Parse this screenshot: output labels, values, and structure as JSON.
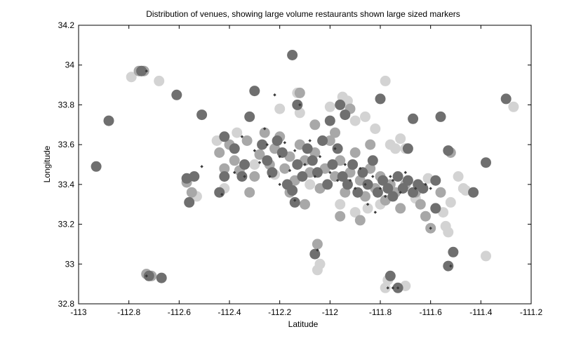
{
  "chart_data": {
    "type": "scatter",
    "title": "Distribution of venues, showing large volume restaurants shown large sized markers",
    "xlabel": "Latitude",
    "ylabel": "Longitude",
    "xlim": [
      -113,
      -111.2
    ],
    "ylim": [
      32.8,
      34.2
    ],
    "xticks": [
      "-113",
      "-112.8",
      "-112.6",
      "-112.4",
      "-112.2",
      "-112",
      "-111.8",
      "-111.6",
      "-111.4",
      "-111.2"
    ],
    "yticks": [
      "32.8",
      "33",
      "33.2",
      "33.4",
      "33.6",
      "33.8",
      "34",
      "34.2"
    ],
    "grid": false,
    "legend": "none",
    "colors": {
      "light": "#d3d3d3",
      "medium": "#a8a8a8",
      "dark": "#6f6f6f",
      "small": "#3a3a3a"
    },
    "series": [
      {
        "marker_size": "large",
        "color": "#d3d3d3",
        "points": [
          [
            -112.79,
            33.94
          ],
          [
            -112.68,
            33.92
          ],
          [
            -112.53,
            33.34
          ],
          [
            -112.42,
            33.38
          ],
          [
            -112.37,
            33.66
          ],
          [
            -112.2,
            33.78
          ],
          [
            -112.13,
            33.86
          ],
          [
            -112.12,
            33.76
          ],
          [
            -112.0,
            33.79
          ],
          [
            -111.95,
            33.84
          ],
          [
            -111.93,
            33.82
          ],
          [
            -111.9,
            33.72
          ],
          [
            -111.86,
            33.74
          ],
          [
            -111.82,
            33.68
          ],
          [
            -111.76,
            33.6
          ],
          [
            -111.74,
            33.58
          ],
          [
            -111.72,
            33.63
          ],
          [
            -111.7,
            33.58
          ],
          [
            -111.61,
            33.43
          ],
          [
            -111.58,
            33.28
          ],
          [
            -111.55,
            33.26
          ],
          [
            -111.54,
            33.19
          ],
          [
            -111.53,
            33.16
          ],
          [
            -111.49,
            33.44
          ],
          [
            -111.47,
            33.38
          ],
          [
            -111.46,
            33.37
          ],
          [
            -111.38,
            33.04
          ],
          [
            -111.27,
            33.79
          ],
          [
            -111.78,
            33.92
          ],
          [
            -111.77,
            32.92
          ],
          [
            -111.78,
            32.88
          ],
          [
            -111.7,
            32.89
          ],
          [
            -112.05,
            32.97
          ],
          [
            -112.04,
            33.0
          ],
          [
            -112.3,
            33.5
          ],
          [
            -112.22,
            33.45
          ],
          [
            -112.08,
            33.4
          ],
          [
            -111.96,
            33.3
          ],
          [
            -111.9,
            33.26
          ],
          [
            -111.85,
            33.28
          ],
          [
            -111.8,
            33.3
          ],
          [
            -111.66,
            33.33
          ],
          [
            -112.45,
            33.62
          ],
          [
            -111.52,
            33.31
          ]
        ]
      },
      {
        "marker_size": "large",
        "color": "#a8a8a8",
        "points": [
          [
            -112.76,
            33.97
          ],
          [
            -112.74,
            33.97
          ],
          [
            -112.73,
            32.95
          ],
          [
            -112.71,
            32.94
          ],
          [
            -112.57,
            33.41
          ],
          [
            -112.55,
            33.36
          ],
          [
            -112.4,
            33.6
          ],
          [
            -112.36,
            33.47
          ],
          [
            -112.33,
            33.62
          ],
          [
            -112.3,
            33.44
          ],
          [
            -112.28,
            33.55
          ],
          [
            -112.26,
            33.66
          ],
          [
            -112.24,
            33.5
          ],
          [
            -112.22,
            33.58
          ],
          [
            -112.2,
            33.64
          ],
          [
            -112.18,
            33.48
          ],
          [
            -112.16,
            33.54
          ],
          [
            -112.14,
            33.42
          ],
          [
            -112.12,
            33.6
          ],
          [
            -112.1,
            33.52
          ],
          [
            -112.08,
            33.46
          ],
          [
            -112.06,
            33.56
          ],
          [
            -112.04,
            33.38
          ],
          [
            -112.02,
            33.48
          ],
          [
            -112.0,
            33.62
          ],
          [
            -111.98,
            33.44
          ],
          [
            -111.96,
            33.52
          ],
          [
            -111.94,
            33.36
          ],
          [
            -111.92,
            33.46
          ],
          [
            -111.9,
            33.56
          ],
          [
            -111.88,
            33.42
          ],
          [
            -111.86,
            33.34
          ],
          [
            -111.84,
            33.48
          ],
          [
            -111.82,
            33.38
          ],
          [
            -111.8,
            33.44
          ],
          [
            -111.78,
            33.32
          ],
          [
            -111.76,
            33.4
          ],
          [
            -111.74,
            33.36
          ],
          [
            -111.72,
            33.28
          ],
          [
            -111.7,
            33.4
          ],
          [
            -111.66,
            33.36
          ],
          [
            -111.62,
            33.24
          ],
          [
            -111.6,
            33.18
          ],
          [
            -112.12,
            33.86
          ],
          [
            -112.05,
            33.1
          ],
          [
            -111.52,
            33.56
          ],
          [
            -111.56,
            33.36
          ],
          [
            -111.64,
            33.3
          ],
          [
            -112.32,
            33.36
          ],
          [
            -112.44,
            33.56
          ],
          [
            -112.42,
            33.48
          ],
          [
            -112.38,
            33.52
          ],
          [
            -111.96,
            33.24
          ],
          [
            -111.88,
            33.22
          ],
          [
            -112.1,
            33.3
          ],
          [
            -112.16,
            33.36
          ],
          [
            -111.92,
            33.78
          ],
          [
            -112.06,
            33.7
          ],
          [
            -111.98,
            33.66
          ],
          [
            -111.84,
            33.6
          ]
        ]
      },
      {
        "marker_size": "large",
        "color": "#6f6f6f",
        "points": [
          [
            -112.93,
            33.49
          ],
          [
            -112.88,
            33.72
          ],
          [
            -112.75,
            33.97
          ],
          [
            -112.72,
            32.94
          ],
          [
            -112.67,
            32.93
          ],
          [
            -112.61,
            33.85
          ],
          [
            -112.57,
            33.43
          ],
          [
            -112.56,
            33.31
          ],
          [
            -112.54,
            33.44
          ],
          [
            -112.51,
            33.75
          ],
          [
            -112.44,
            33.36
          ],
          [
            -112.42,
            33.64
          ],
          [
            -112.38,
            33.58
          ],
          [
            -112.35,
            33.44
          ],
          [
            -112.32,
            33.74
          ],
          [
            -112.3,
            33.87
          ],
          [
            -112.27,
            33.6
          ],
          [
            -112.25,
            33.52
          ],
          [
            -112.23,
            33.46
          ],
          [
            -112.21,
            33.62
          ],
          [
            -112.19,
            33.56
          ],
          [
            -112.17,
            33.4
          ],
          [
            -112.15,
            33.37
          ],
          [
            -112.14,
            33.31
          ],
          [
            -112.13,
            33.5
          ],
          [
            -112.11,
            33.44
          ],
          [
            -112.09,
            33.58
          ],
          [
            -112.07,
            33.52
          ],
          [
            -112.05,
            33.46
          ],
          [
            -112.03,
            33.62
          ],
          [
            -112.01,
            33.4
          ],
          [
            -111.99,
            33.5
          ],
          [
            -111.97,
            33.58
          ],
          [
            -111.95,
            33.44
          ],
          [
            -111.93,
            33.4
          ],
          [
            -111.91,
            33.5
          ],
          [
            -111.89,
            33.36
          ],
          [
            -111.87,
            33.46
          ],
          [
            -111.85,
            33.4
          ],
          [
            -111.83,
            33.52
          ],
          [
            -111.81,
            33.36
          ],
          [
            -111.79,
            33.42
          ],
          [
            -111.77,
            33.38
          ],
          [
            -111.75,
            33.34
          ],
          [
            -111.73,
            33.44
          ],
          [
            -111.71,
            33.38
          ],
          [
            -111.69,
            33.42
          ],
          [
            -111.67,
            33.36
          ],
          [
            -111.65,
            33.4
          ],
          [
            -111.63,
            33.38
          ],
          [
            -111.58,
            33.42
          ],
          [
            -111.56,
            33.74
          ],
          [
            -111.53,
            33.57
          ],
          [
            -111.51,
            33.06
          ],
          [
            -111.43,
            33.36
          ],
          [
            -111.38,
            33.51
          ],
          [
            -111.3,
            33.83
          ],
          [
            -112.13,
            33.8
          ],
          [
            -112.0,
            33.72
          ],
          [
            -111.96,
            33.8
          ],
          [
            -112.06,
            33.05
          ],
          [
            -111.76,
            32.94
          ],
          [
            -111.73,
            32.88
          ],
          [
            -111.8,
            33.83
          ],
          [
            -111.67,
            33.73
          ],
          [
            -111.69,
            33.58
          ],
          [
            -112.42,
            33.44
          ],
          [
            -112.34,
            33.5
          ],
          [
            -111.58,
            33.28
          ],
          [
            -111.53,
            32.99
          ],
          [
            -112.15,
            34.05
          ],
          [
            -111.94,
            33.75
          ]
        ]
      },
      {
        "marker_size": "small",
        "color": "#3a3a3a",
        "points": [
          [
            -112.73,
            33.97
          ],
          [
            -112.73,
            32.94
          ],
          [
            -112.51,
            33.49
          ],
          [
            -112.43,
            33.35
          ],
          [
            -112.26,
            33.68
          ],
          [
            -112.22,
            33.85
          ],
          [
            -112.12,
            33.8
          ],
          [
            -112.05,
            33.07
          ],
          [
            -112.14,
            33.32
          ],
          [
            -111.77,
            32.88
          ],
          [
            -111.75,
            32.88
          ],
          [
            -111.73,
            32.88
          ],
          [
            -111.6,
            33.18
          ],
          [
            -111.52,
            32.99
          ],
          [
            -111.6,
            33.38
          ],
          [
            -112.35,
            33.64
          ],
          [
            -112.3,
            33.57
          ],
          [
            -112.28,
            33.51
          ],
          [
            -112.25,
            33.6
          ],
          [
            -112.2,
            33.54
          ],
          [
            -112.18,
            33.61
          ],
          [
            -112.16,
            33.47
          ],
          [
            -112.14,
            33.57
          ],
          [
            -112.1,
            33.5
          ],
          [
            -112.08,
            33.62
          ],
          [
            -112.06,
            33.44
          ],
          [
            -112.04,
            33.54
          ],
          [
            -112.0,
            33.46
          ],
          [
            -111.97,
            33.42
          ],
          [
            -111.94,
            33.5
          ],
          [
            -111.92,
            33.42
          ],
          [
            -111.9,
            33.38
          ],
          [
            -111.88,
            33.48
          ],
          [
            -111.86,
            33.4
          ],
          [
            -111.83,
            33.44
          ],
          [
            -111.8,
            33.38
          ],
          [
            -111.78,
            33.34
          ],
          [
            -111.75,
            33.42
          ],
          [
            -111.72,
            33.36
          ],
          [
            -111.7,
            33.46
          ],
          [
            -111.66,
            33.38
          ],
          [
            -111.62,
            33.4
          ],
          [
            -112.38,
            33.46
          ],
          [
            -112.34,
            33.44
          ],
          [
            -112.24,
            33.44
          ],
          [
            -112.2,
            33.4
          ],
          [
            -111.98,
            33.58
          ],
          [
            -111.85,
            33.3
          ],
          [
            -111.82,
            33.26
          ],
          [
            -111.76,
            33.44
          ]
        ]
      }
    ]
  }
}
